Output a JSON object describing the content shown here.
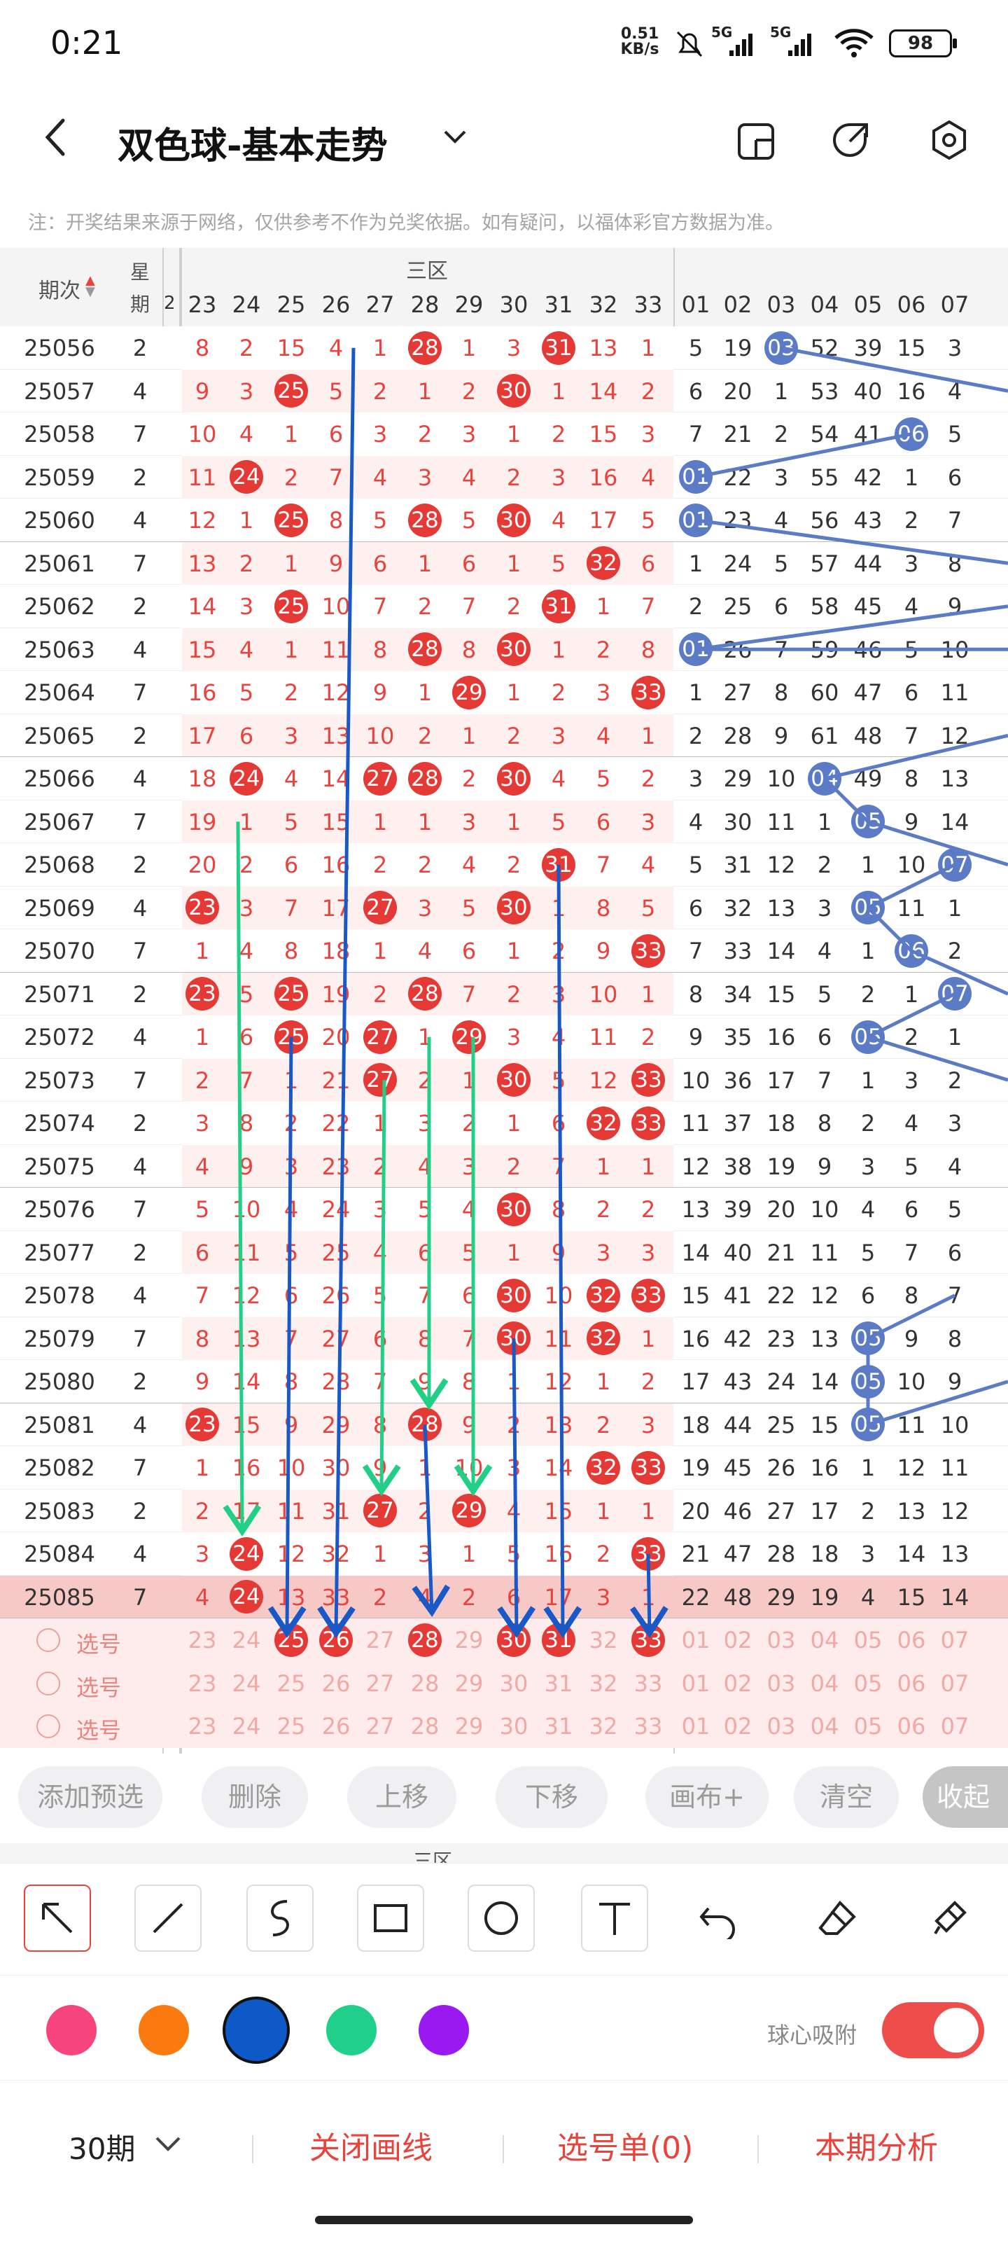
{
  "status_bar": {
    "time": "0:21",
    "net_speed_value": "0.51",
    "net_speed_unit": "KB/s",
    "signal1": "5G",
    "signal2": "5G",
    "battery": "98"
  },
  "app_bar": {
    "title": "双色球-基本走势"
  },
  "notice": "注：开奖结果来源于网络，仅供参考不作为兑奖依据。如有疑问，以福体彩官方数据为准。",
  "table": {
    "header_period": "期次",
    "header_week": "星期",
    "zone_label": "三区",
    "red_cols": [
      "23",
      "24",
      "25",
      "26",
      "27",
      "28",
      "29",
      "30",
      "31",
      "32",
      "33"
    ],
    "blue_cols": [
      "01",
      "02",
      "03",
      "04",
      "05",
      "06",
      "07"
    ],
    "edge_col": "2",
    "rows": [
      {
        "p": "25056",
        "w": "2",
        "r": [
          "8",
          "2",
          "15",
          "4",
          "1",
          "28",
          "1",
          "3",
          "31",
          "13",
          "1"
        ],
        "b": [
          "5",
          "19",
          "03",
          "52",
          "39",
          "15",
          "3"
        ]
      },
      {
        "p": "25057",
        "w": "4",
        "r": [
          "9",
          "3",
          "25",
          "5",
          "2",
          "1",
          "2",
          "30",
          "1",
          "14",
          "2"
        ],
        "b": [
          "6",
          "20",
          "1",
          "53",
          "40",
          "16",
          "4"
        ]
      },
      {
        "p": "25058",
        "w": "7",
        "r": [
          "10",
          "4",
          "1",
          "6",
          "3",
          "2",
          "3",
          "1",
          "2",
          "15",
          "3"
        ],
        "b": [
          "7",
          "21",
          "2",
          "54",
          "41",
          "06",
          "5"
        ]
      },
      {
        "p": "25059",
        "w": "2",
        "r": [
          "11",
          "24",
          "2",
          "7",
          "4",
          "3",
          "4",
          "2",
          "3",
          "16",
          "4"
        ],
        "b": [
          "01",
          "22",
          "3",
          "55",
          "42",
          "1",
          "6"
        ]
      },
      {
        "p": "25060",
        "w": "4",
        "r": [
          "12",
          "1",
          "25",
          "8",
          "5",
          "28",
          "5",
          "30",
          "4",
          "17",
          "5"
        ],
        "b": [
          "01",
          "23",
          "4",
          "56",
          "43",
          "2",
          "7"
        ]
      },
      {
        "p": "25061",
        "w": "7",
        "r": [
          "13",
          "2",
          "1",
          "9",
          "6",
          "1",
          "6",
          "1",
          "5",
          "32",
          "6"
        ],
        "b": [
          "1",
          "24",
          "5",
          "57",
          "44",
          "3",
          "8"
        ]
      },
      {
        "p": "25062",
        "w": "2",
        "r": [
          "14",
          "3",
          "25",
          "10",
          "7",
          "2",
          "7",
          "2",
          "31",
          "1",
          "7"
        ],
        "b": [
          "2",
          "25",
          "6",
          "58",
          "45",
          "4",
          "9"
        ]
      },
      {
        "p": "25063",
        "w": "4",
        "r": [
          "15",
          "4",
          "1",
          "11",
          "8",
          "28",
          "8",
          "30",
          "1",
          "2",
          "8"
        ],
        "b": [
          "01",
          "26",
          "7",
          "59",
          "46",
          "5",
          "10"
        ]
      },
      {
        "p": "25064",
        "w": "7",
        "r": [
          "16",
          "5",
          "2",
          "12",
          "9",
          "1",
          "29",
          "1",
          "2",
          "3",
          "33"
        ],
        "b": [
          "1",
          "27",
          "8",
          "60",
          "47",
          "6",
          "11"
        ]
      },
      {
        "p": "25065",
        "w": "2",
        "r": [
          "17",
          "6",
          "3",
          "13",
          "10",
          "2",
          "1",
          "2",
          "3",
          "4",
          "1"
        ],
        "b": [
          "2",
          "28",
          "9",
          "61",
          "48",
          "7",
          "12"
        ]
      },
      {
        "p": "25066",
        "w": "4",
        "r": [
          "18",
          "24",
          "4",
          "14",
          "27",
          "28",
          "2",
          "30",
          "4",
          "5",
          "2"
        ],
        "b": [
          "3",
          "29",
          "10",
          "04",
          "49",
          "8",
          "13"
        ]
      },
      {
        "p": "25067",
        "w": "7",
        "r": [
          "19",
          "1",
          "5",
          "15",
          "1",
          "1",
          "3",
          "1",
          "5",
          "6",
          "3"
        ],
        "b": [
          "4",
          "30",
          "11",
          "1",
          "05",
          "9",
          "14"
        ]
      },
      {
        "p": "25068",
        "w": "2",
        "r": [
          "20",
          "2",
          "6",
          "16",
          "2",
          "2",
          "4",
          "2",
          "31",
          "7",
          "4"
        ],
        "b": [
          "5",
          "31",
          "12",
          "2",
          "1",
          "10",
          "07"
        ]
      },
      {
        "p": "25069",
        "w": "4",
        "r": [
          "23",
          "3",
          "7",
          "17",
          "27",
          "3",
          "5",
          "30",
          "1",
          "8",
          "5"
        ],
        "b": [
          "6",
          "32",
          "13",
          "3",
          "05",
          "11",
          "1"
        ]
      },
      {
        "p": "25070",
        "w": "7",
        "r": [
          "1",
          "4",
          "8",
          "18",
          "1",
          "4",
          "6",
          "1",
          "2",
          "9",
          "33"
        ],
        "b": [
          "7",
          "33",
          "14",
          "4",
          "1",
          "06",
          "2"
        ]
      },
      {
        "p": "25071",
        "w": "2",
        "r": [
          "23",
          "5",
          "25",
          "19",
          "2",
          "28",
          "7",
          "2",
          "3",
          "10",
          "1"
        ],
        "b": [
          "8",
          "34",
          "15",
          "5",
          "2",
          "1",
          "07"
        ]
      },
      {
        "p": "25072",
        "w": "4",
        "r": [
          "1",
          "6",
          "25",
          "20",
          "27",
          "1",
          "29",
          "3",
          "4",
          "11",
          "2"
        ],
        "b": [
          "9",
          "35",
          "16",
          "6",
          "05",
          "2",
          "1"
        ]
      },
      {
        "p": "25073",
        "w": "7",
        "r": [
          "2",
          "7",
          "1",
          "21",
          "27",
          "2",
          "1",
          "30",
          "5",
          "12",
          "33"
        ],
        "b": [
          "10",
          "36",
          "17",
          "7",
          "1",
          "3",
          "2"
        ]
      },
      {
        "p": "25074",
        "w": "2",
        "r": [
          "3",
          "8",
          "2",
          "22",
          "1",
          "3",
          "2",
          "1",
          "6",
          "32",
          "33"
        ],
        "b": [
          "11",
          "37",
          "18",
          "8",
          "2",
          "4",
          "3"
        ]
      },
      {
        "p": "25075",
        "w": "4",
        "r": [
          "4",
          "9",
          "3",
          "23",
          "2",
          "4",
          "3",
          "2",
          "7",
          "1",
          "1"
        ],
        "b": [
          "12",
          "38",
          "19",
          "9",
          "3",
          "5",
          "4"
        ]
      },
      {
        "p": "25076",
        "w": "7",
        "r": [
          "5",
          "10",
          "4",
          "24",
          "3",
          "5",
          "4",
          "30",
          "8",
          "2",
          "2"
        ],
        "b": [
          "13",
          "39",
          "20",
          "10",
          "4",
          "6",
          "5"
        ]
      },
      {
        "p": "25077",
        "w": "2",
        "r": [
          "6",
          "11",
          "5",
          "25",
          "4",
          "6",
          "5",
          "1",
          "9",
          "3",
          "3"
        ],
        "b": [
          "14",
          "40",
          "21",
          "11",
          "5",
          "7",
          "6"
        ]
      },
      {
        "p": "25078",
        "w": "4",
        "r": [
          "7",
          "12",
          "6",
          "26",
          "5",
          "7",
          "6",
          "30",
          "10",
          "32",
          "33"
        ],
        "b": [
          "15",
          "41",
          "22",
          "12",
          "6",
          "8",
          "7"
        ]
      },
      {
        "p": "25079",
        "w": "7",
        "r": [
          "8",
          "13",
          "7",
          "27",
          "6",
          "8",
          "7",
          "30",
          "11",
          "32",
          "1"
        ],
        "b": [
          "16",
          "42",
          "23",
          "13",
          "05",
          "9",
          "8"
        ]
      },
      {
        "p": "25080",
        "w": "2",
        "r": [
          "9",
          "14",
          "8",
          "28",
          "7",
          "9",
          "8",
          "1",
          "12",
          "1",
          "2"
        ],
        "b": [
          "17",
          "43",
          "24",
          "14",
          "05",
          "10",
          "9"
        ]
      },
      {
        "p": "25081",
        "w": "4",
        "r": [
          "23",
          "15",
          "9",
          "29",
          "8",
          "28",
          "9",
          "2",
          "13",
          "2",
          "3"
        ],
        "b": [
          "18",
          "44",
          "25",
          "15",
          "05",
          "11",
          "10"
        ]
      },
      {
        "p": "25082",
        "w": "7",
        "r": [
          "1",
          "16",
          "10",
          "30",
          "9",
          "1",
          "10",
          "3",
          "14",
          "32",
          "33"
        ],
        "b": [
          "19",
          "45",
          "26",
          "16",
          "1",
          "12",
          "11"
        ]
      },
      {
        "p": "25083",
        "w": "2",
        "r": [
          "2",
          "17",
          "11",
          "31",
          "27",
          "2",
          "29",
          "4",
          "15",
          "1",
          "1"
        ],
        "b": [
          "20",
          "46",
          "27",
          "17",
          "2",
          "13",
          "12"
        ]
      },
      {
        "p": "25084",
        "w": "4",
        "r": [
          "3",
          "24",
          "12",
          "32",
          "1",
          "3",
          "1",
          "5",
          "16",
          "2",
          "33"
        ],
        "b": [
          "21",
          "47",
          "28",
          "18",
          "3",
          "14",
          "13"
        ]
      },
      {
        "p": "25085",
        "w": "7",
        "r": [
          "4",
          "24",
          "13",
          "33",
          "2",
          "4",
          "2",
          "6",
          "17",
          "3",
          "1"
        ],
        "b": [
          "22",
          "48",
          "29",
          "19",
          "4",
          "15",
          "14"
        ]
      }
    ],
    "pick_label": "选号",
    "pick_red": [
      "23",
      "24",
      "25",
      "26",
      "27",
      "28",
      "29",
      "30",
      "31",
      "32",
      "33"
    ],
    "pick_blue": [
      "01",
      "02",
      "03",
      "04",
      "05",
      "06",
      "07"
    ],
    "pick_selected": [
      "25",
      "26",
      "28",
      "30",
      "31",
      "33"
    ]
  },
  "actions": {
    "add_presel": "添加预选",
    "delete": "删除",
    "move_up": "上移",
    "move_down": "下移",
    "canvas_plus": "画布+",
    "clear": "清空",
    "collapse": "收起"
  },
  "tools": [
    "arrow-icon",
    "line-icon",
    "curve-icon",
    "rectangle-icon",
    "circle-icon",
    "text-icon",
    "undo-icon",
    "eraser-icon",
    "brush-icon"
  ],
  "palette": {
    "colors": [
      "#f5457c",
      "#fb7a10",
      "#0d59c7",
      "#1fcf8a",
      "#9a19f0"
    ],
    "selected": "#0d59c7",
    "snap_label": "球心吸附",
    "snap_on": true
  },
  "bottom": {
    "periods": "30期",
    "close_lines": "关闭画线",
    "pick_list": "选号单(0)",
    "analysis": "本期分析"
  },
  "highlight": {
    "red_balls": [
      [
        "25056",
        "28"
      ],
      [
        "25056",
        "31"
      ],
      [
        "25057",
        "25"
      ],
      [
        "25057",
        "30"
      ],
      [
        "25059",
        "24"
      ],
      [
        "25060",
        "25"
      ],
      [
        "25060",
        "28"
      ],
      [
        "25060",
        "30"
      ],
      [
        "25061",
        "32"
      ],
      [
        "25062",
        "25"
      ],
      [
        "25062",
        "31"
      ],
      [
        "25063",
        "28"
      ],
      [
        "25063",
        "30"
      ],
      [
        "25064",
        "29"
      ],
      [
        "25064",
        "33"
      ],
      [
        "25066",
        "24"
      ],
      [
        "25066",
        "27"
      ],
      [
        "25066",
        "28"
      ],
      [
        "25066",
        "30"
      ],
      [
        "25068",
        "31"
      ],
      [
        "25069",
        "23"
      ],
      [
        "25069",
        "27"
      ],
      [
        "25069",
        "30"
      ],
      [
        "25070",
        "33"
      ],
      [
        "25071",
        "23"
      ],
      [
        "25071",
        "25"
      ],
      [
        "25071",
        "28"
      ],
      [
        "25072",
        "25"
      ],
      [
        "25072",
        "27"
      ],
      [
        "25072",
        "29"
      ],
      [
        "25073",
        "27"
      ],
      [
        "25073",
        "30"
      ],
      [
        "25073",
        "33"
      ],
      [
        "25074",
        "32"
      ],
      [
        "25074",
        "33"
      ],
      [
        "25076",
        "30"
      ],
      [
        "25078",
        "30"
      ],
      [
        "25078",
        "32"
      ],
      [
        "25078",
        "33"
      ],
      [
        "25079",
        "30"
      ],
      [
        "25079",
        "32"
      ],
      [
        "25081",
        "23"
      ],
      [
        "25081",
        "28"
      ],
      [
        "25082",
        "32"
      ],
      [
        "25082",
        "33"
      ],
      [
        "25083",
        "27"
      ],
      [
        "25083",
        "29"
      ],
      [
        "25084",
        "24"
      ],
      [
        "25084",
        "33"
      ],
      [
        "25085",
        "24"
      ]
    ],
    "blue_balls": [
      [
        "25056",
        "03"
      ],
      [
        "25058",
        "06"
      ],
      [
        "25059",
        "01"
      ],
      [
        "25060",
        "01"
      ],
      [
        "25063",
        "01"
      ],
      [
        "25066",
        "04"
      ],
      [
        "25067",
        "05"
      ],
      [
        "25068",
        "07"
      ],
      [
        "25069",
        "05"
      ],
      [
        "25070",
        "06"
      ],
      [
        "25071",
        "07"
      ],
      [
        "25072",
        "05"
      ],
      [
        "25079",
        "05"
      ],
      [
        "25080",
        "05"
      ],
      [
        "25081",
        "05"
      ]
    ]
  }
}
